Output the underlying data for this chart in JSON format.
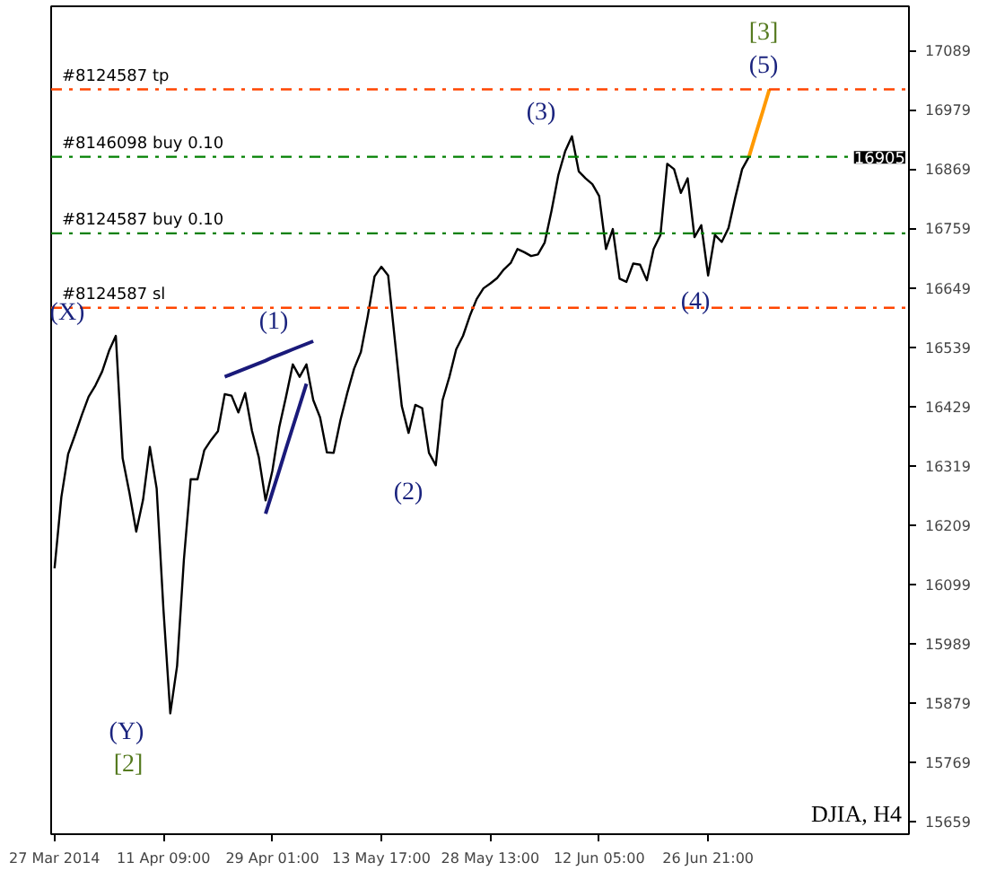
{
  "chart_data": {
    "type": "line",
    "categories": [
      "27 Mar 2014",
      null,
      null,
      null,
      null,
      null,
      null,
      null,
      null,
      null,
      null,
      null,
      null,
      null,
      null,
      null,
      "11 Apr 09:00",
      null,
      null,
      null,
      null,
      null,
      null,
      null,
      null,
      null,
      null,
      null,
      null,
      null,
      null,
      null,
      "29 Apr 01:00",
      null,
      null,
      null,
      null,
      null,
      null,
      null,
      null,
      null,
      null,
      null,
      null,
      null,
      null,
      null,
      "13 May 17:00",
      null,
      null,
      null,
      null,
      null,
      null,
      null,
      null,
      null,
      null,
      null,
      null,
      null,
      null,
      null,
      "28 May 13:00",
      null,
      null,
      null,
      null,
      null,
      null,
      null,
      null,
      null,
      null,
      null,
      null,
      null,
      null,
      null,
      "12 Jun 05:00",
      null,
      null,
      null,
      null,
      null,
      null,
      null,
      null,
      null,
      null,
      null,
      null,
      null,
      null,
      null,
      "26 Jun 21:00",
      null,
      null,
      null,
      null,
      null,
      null,
      null,
      null,
      null,
      null,
      null,
      null,
      null,
      null,
      null,
      null,
      null,
      null,
      null,
      null,
      null,
      null,
      null,
      null,
      null,
      null,
      null,
      null,
      null
    ],
    "ylim": [
      15636,
      17171
    ],
    "yticks": [
      15659,
      15769,
      15879,
      15989,
      16099,
      16209,
      16319,
      16429,
      16539,
      16649,
      16759,
      16869,
      16979,
      17089
    ],
    "grid": false,
    "series": [
      {
        "color": "#000000",
        "values": [
          16129,
          16261,
          16341,
          16376,
          16413,
          16447,
          16468,
          16494,
          16532,
          16560,
          16333,
          16269,
          16197,
          16256,
          16354,
          16277,
          16052,
          15860,
          15948,
          16145,
          16294,
          16294,
          16348,
          16367,
          16383,
          16452,
          16449,
          16418,
          16454,
          16384,
          16335,
          16255,
          16310,
          16390,
          16447,
          16507,
          16484,
          16507,
          16441,
          16409,
          16344,
          16343,
          16404,
          16454,
          16499,
          16530,
          16596,
          16670,
          16688,
          16672,
          16551,
          16430,
          16380,
          16432,
          16426,
          16343,
          16320,
          16441,
          16484,
          16535,
          16560,
          16597,
          16628,
          16648,
          16657,
          16667,
          16683,
          16695,
          16721,
          16715,
          16708,
          16711,
          16733,
          16792,
          16858,
          16902,
          16930,
          16865,
          16852,
          16841,
          16819,
          16721,
          16758,
          16666,
          16660,
          16694,
          16692,
          16663,
          16721,
          16747,
          16879,
          16869,
          16825,
          16852,
          16743,
          16765,
          16672,
          16747,
          16734,
          16760,
          16817,
          16869,
          16892,
          null,
          null,
          null,
          null,
          null,
          null,
          null,
          null,
          null,
          null,
          null,
          null,
          null,
          null,
          null,
          null,
          null,
          null,
          null,
          null,
          null,
          null,
          null
        ]
      },
      {
        "color": "#1a1a7a",
        "values": [
          null,
          null,
          null,
          null,
          null,
          null,
          null,
          null,
          null,
          null,
          null,
          null,
          null,
          null,
          null,
          null,
          null,
          null,
          null,
          null,
          null,
          null,
          null,
          null,
          null,
          16484,
          16489,
          16494,
          16499,
          16504,
          16509,
          16514,
          16520,
          16525,
          16530,
          16535,
          16540,
          16545,
          16550,
          null,
          null,
          null,
          null,
          null,
          null,
          null,
          null,
          null,
          null,
          null,
          null,
          null,
          null,
          null,
          null,
          null,
          null,
          null,
          null,
          null,
          null,
          null,
          null,
          null,
          null,
          null,
          null,
          null,
          null,
          null,
          null,
          null,
          null,
          null,
          null,
          null,
          null,
          null,
          null,
          null,
          null,
          null,
          null,
          null,
          null,
          null,
          null,
          null,
          null,
          null,
          null,
          null,
          null,
          null,
          null,
          null,
          null,
          null,
          null,
          null,
          null,
          null,
          null,
          null,
          null,
          null,
          null,
          null,
          null,
          null,
          null,
          null,
          null,
          null,
          null,
          null,
          null,
          null,
          null,
          null,
          null,
          null,
          null,
          null,
          null,
          null
        ]
      },
      {
        "color": "#1a1a7a",
        "values": [
          null,
          null,
          null,
          null,
          null,
          null,
          null,
          null,
          null,
          null,
          null,
          null,
          null,
          null,
          null,
          null,
          null,
          null,
          null,
          null,
          null,
          null,
          null,
          null,
          null,
          null,
          null,
          null,
          null,
          null,
          null,
          16230,
          16270,
          16310,
          16351,
          16391,
          16431,
          16471,
          null,
          null,
          null,
          null,
          null,
          null,
          null,
          null,
          null,
          null,
          null,
          null,
          null,
          null,
          null,
          null,
          null,
          null,
          null,
          null,
          null,
          null,
          null,
          null,
          null,
          null,
          null,
          null,
          null,
          null,
          null,
          null,
          null,
          null,
          null,
          null,
          null,
          null,
          null,
          null,
          null,
          null,
          null,
          null,
          null,
          null,
          null,
          null,
          null,
          null,
          null,
          null,
          null,
          null,
          null,
          null,
          null,
          null,
          null,
          null,
          null,
          null,
          null,
          null,
          null,
          null,
          null,
          null,
          null,
          null,
          null,
          null,
          null,
          null,
          null,
          null,
          null,
          null,
          null,
          null,
          null,
          null,
          null,
          null,
          null,
          null,
          null,
          null
        ]
      },
      {
        "color": "#ff9900",
        "values": [
          null,
          null,
          null,
          null,
          null,
          null,
          null,
          null,
          null,
          null,
          null,
          null,
          null,
          null,
          null,
          null,
          null,
          null,
          null,
          null,
          null,
          null,
          null,
          null,
          null,
          null,
          null,
          null,
          null,
          null,
          null,
          null,
          null,
          null,
          null,
          null,
          null,
          null,
          null,
          null,
          null,
          null,
          null,
          null,
          null,
          null,
          null,
          null,
          null,
          null,
          null,
          null,
          null,
          null,
          null,
          null,
          null,
          null,
          null,
          null,
          null,
          null,
          null,
          null,
          null,
          null,
          null,
          null,
          null,
          null,
          null,
          null,
          null,
          null,
          null,
          null,
          null,
          null,
          null,
          null,
          null,
          null,
          null,
          null,
          null,
          null,
          null,
          null,
          null,
          null,
          null,
          null,
          null,
          null,
          null,
          null,
          null,
          null,
          null,
          null,
          null,
          null,
          16892,
          16934,
          16975,
          17017,
          null,
          null,
          null,
          null,
          null,
          null,
          null,
          null,
          null,
          null,
          null,
          null,
          null,
          null,
          null,
          null,
          null,
          null,
          null,
          null
        ]
      }
    ],
    "ref_lines": [
      {
        "axis": "y",
        "value": 17017,
        "label": "#8124587 tp",
        "color": "#ff4500",
        "line_style": "dashdot"
      },
      {
        "axis": "y",
        "value": 16892,
        "label": "#8146098 buy 0.10",
        "color": "#008000",
        "line_style": "dashdot"
      },
      {
        "axis": "y",
        "value": 16750,
        "label": "#8124587 buy 0.10",
        "color": "#008000",
        "line_style": "dashdot"
      },
      {
        "axis": "y",
        "value": 16612,
        "label": "#8124587 sl",
        "color": "#ff4500",
        "line_style": "dashdot"
      }
    ],
    "annotations": [
      "(X)",
      "(1)",
      "(2)",
      "(3)",
      "(4)",
      "(5)",
      "[3]",
      "(Y)",
      "[2]",
      "16905",
      "DJIA, H4"
    ]
  }
}
